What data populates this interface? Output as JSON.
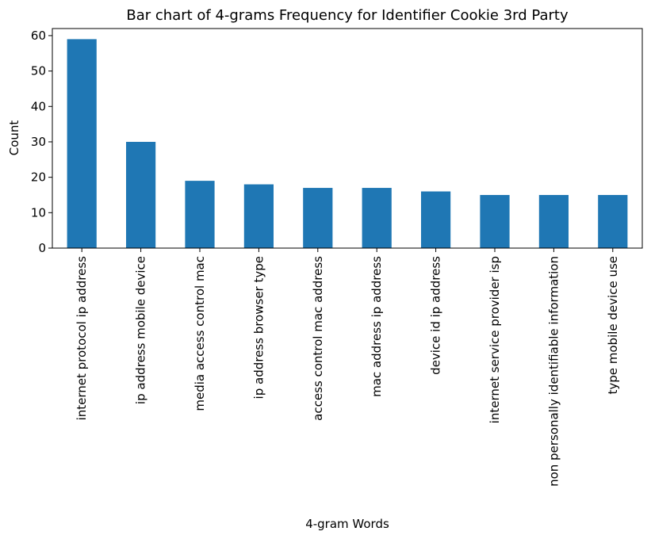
{
  "chart_data": {
    "type": "bar",
    "title": "Bar chart of 4-grams Frequency for Identifier Cookie 3rd Party",
    "xlabel": "4-gram Words",
    "ylabel": "Count",
    "categories": [
      "internet protocol ip address",
      "ip address mobile device",
      "media access control mac",
      "ip address browser type",
      "access control mac address",
      "mac address ip address",
      "device id ip address",
      "internet service provider isp",
      "non personally identifiable information",
      "type mobile device use"
    ],
    "values": [
      59,
      30,
      19,
      18,
      17,
      17,
      16,
      15,
      15,
      15
    ],
    "ylim": [
      0,
      62
    ],
    "yticks": [
      0,
      10,
      20,
      30,
      40,
      50,
      60
    ],
    "bar_color": "#1f77b4",
    "grid": false,
    "legend": false
  }
}
